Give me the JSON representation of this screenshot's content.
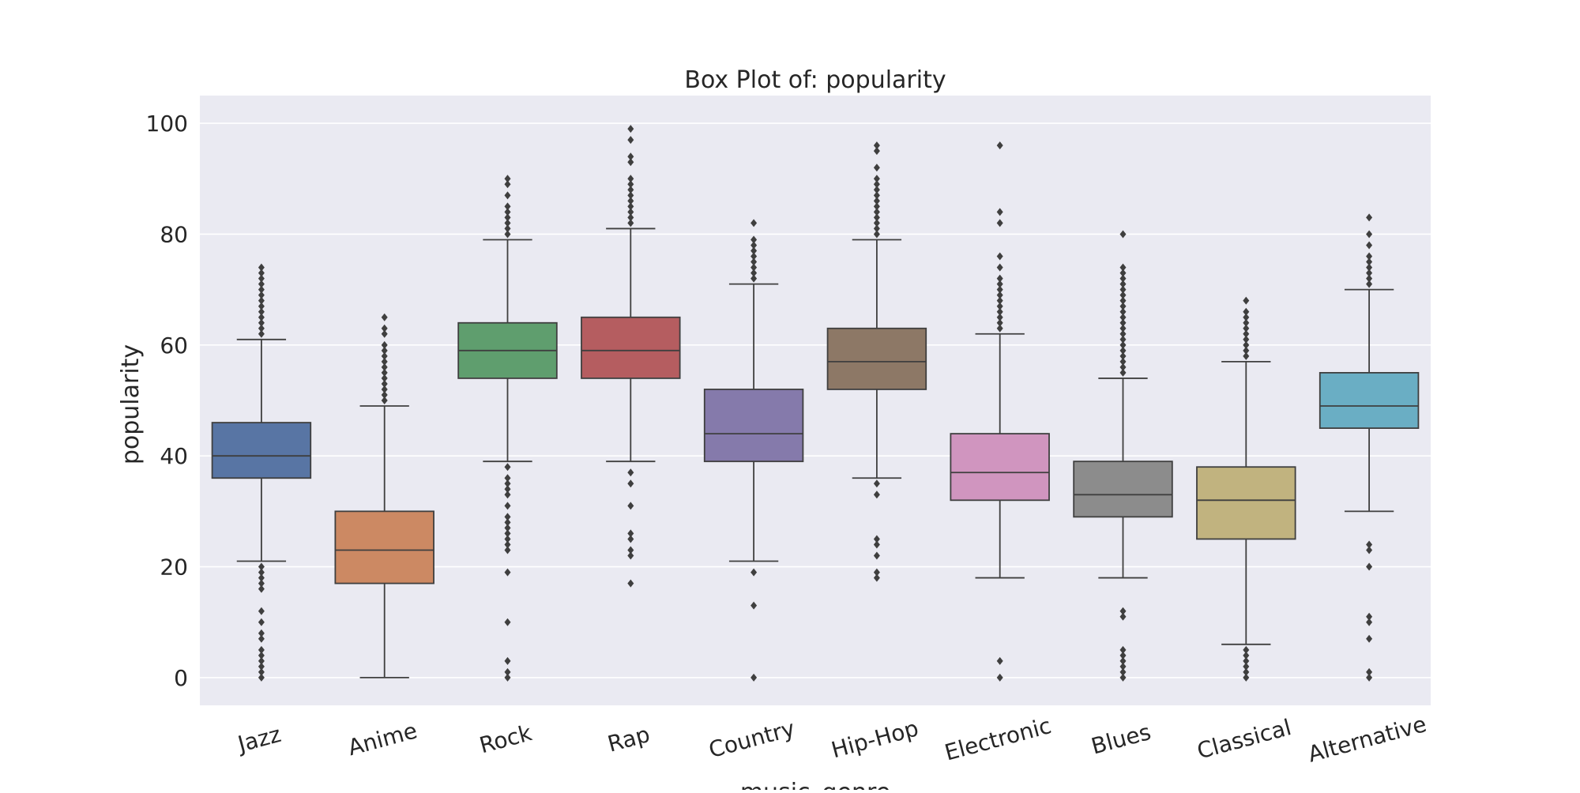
{
  "chart_data": {
    "type": "box",
    "title": "Box Plot of: popularity",
    "xlabel": "music_genre",
    "ylabel": "popularity",
    "ylim": [
      -5,
      105
    ],
    "yticks": [
      0,
      20,
      40,
      60,
      80,
      100
    ],
    "grid": true,
    "legend": "none",
    "categories": [
      "Jazz",
      "Anime",
      "Rock",
      "Rap",
      "Country",
      "Hip-Hop",
      "Electronic",
      "Blues",
      "Classical",
      "Alternative"
    ],
    "colors": [
      "#5875a4",
      "#cc8963",
      "#5f9e6e",
      "#b55d60",
      "#857aab",
      "#8d7866",
      "#d095bf",
      "#8c8c8c",
      "#c1b37f",
      "#6aaec4"
    ],
    "boxes": [
      {
        "name": "Jazz",
        "whisker_low": 21,
        "q1": 36,
        "median": 40,
        "q3": 46,
        "whisker_high": 61,
        "outliers": [
          74,
          73,
          72,
          71,
          70,
          69,
          68,
          67,
          66,
          65,
          64,
          63,
          62,
          20,
          19,
          18,
          17,
          16,
          12,
          10,
          8,
          7,
          5,
          4,
          3,
          2,
          1,
          0
        ]
      },
      {
        "name": "Anime",
        "whisker_low": 0,
        "q1": 17,
        "median": 23,
        "q3": 30,
        "whisker_high": 49,
        "outliers": [
          65,
          63,
          62,
          60,
          59,
          58,
          57,
          56,
          55,
          54,
          53,
          52,
          51,
          50
        ]
      },
      {
        "name": "Rock",
        "whisker_low": 39,
        "q1": 54,
        "median": 59,
        "q3": 64,
        "whisker_high": 79,
        "outliers": [
          90,
          89,
          87,
          85,
          84,
          83,
          82,
          81,
          80,
          38,
          36,
          35,
          34,
          33,
          31,
          29,
          28,
          27,
          26,
          25,
          24,
          23,
          19,
          10,
          3,
          1,
          0
        ]
      },
      {
        "name": "Rap",
        "whisker_low": 39,
        "q1": 54,
        "median": 59,
        "q3": 65,
        "whisker_high": 81,
        "outliers": [
          99,
          97,
          94,
          93,
          90,
          89,
          88,
          87,
          86,
          85,
          84,
          83,
          82,
          37,
          35,
          31,
          26,
          25,
          23,
          22,
          17
        ]
      },
      {
        "name": "Country",
        "whisker_low": 21,
        "q1": 39,
        "median": 44,
        "q3": 52,
        "whisker_high": 71,
        "outliers": [
          82,
          79,
          78,
          77,
          76,
          75,
          74,
          73,
          72,
          19,
          13,
          0
        ]
      },
      {
        "name": "Hip-Hop",
        "whisker_low": 36,
        "q1": 52,
        "median": 57,
        "q3": 63,
        "whisker_high": 79,
        "outliers": [
          96,
          95,
          92,
          90,
          89,
          88,
          87,
          86,
          85,
          84,
          83,
          82,
          81,
          80,
          35,
          33,
          25,
          24,
          22,
          19,
          18
        ]
      },
      {
        "name": "Electronic",
        "whisker_low": 18,
        "q1": 32,
        "median": 37,
        "q3": 44,
        "whisker_high": 62,
        "outliers": [
          96,
          84,
          82,
          76,
          74,
          72,
          71,
          70,
          69,
          68,
          67,
          66,
          65,
          64,
          63,
          3,
          0
        ]
      },
      {
        "name": "Blues",
        "whisker_low": 18,
        "q1": 29,
        "median": 33,
        "q3": 39,
        "whisker_high": 54,
        "outliers": [
          80,
          74,
          73,
          72,
          71,
          70,
          69,
          68,
          67,
          66,
          65,
          64,
          63,
          62,
          61,
          60,
          59,
          58,
          57,
          56,
          55,
          12,
          11,
          5,
          4,
          3,
          2,
          1,
          0
        ]
      },
      {
        "name": "Classical",
        "whisker_low": 6,
        "q1": 25,
        "median": 32,
        "q3": 38,
        "whisker_high": 57,
        "outliers": [
          68,
          66,
          65,
          64,
          63,
          62,
          61,
          60,
          59,
          58,
          5,
          4,
          3,
          2,
          1,
          0
        ]
      },
      {
        "name": "Alternative",
        "whisker_low": 30,
        "q1": 45,
        "median": 49,
        "q3": 55,
        "whisker_high": 70,
        "outliers": [
          83,
          80,
          78,
          76,
          75,
          74,
          73,
          72,
          71,
          24,
          23,
          20,
          11,
          10,
          7,
          1,
          0
        ]
      }
    ]
  }
}
